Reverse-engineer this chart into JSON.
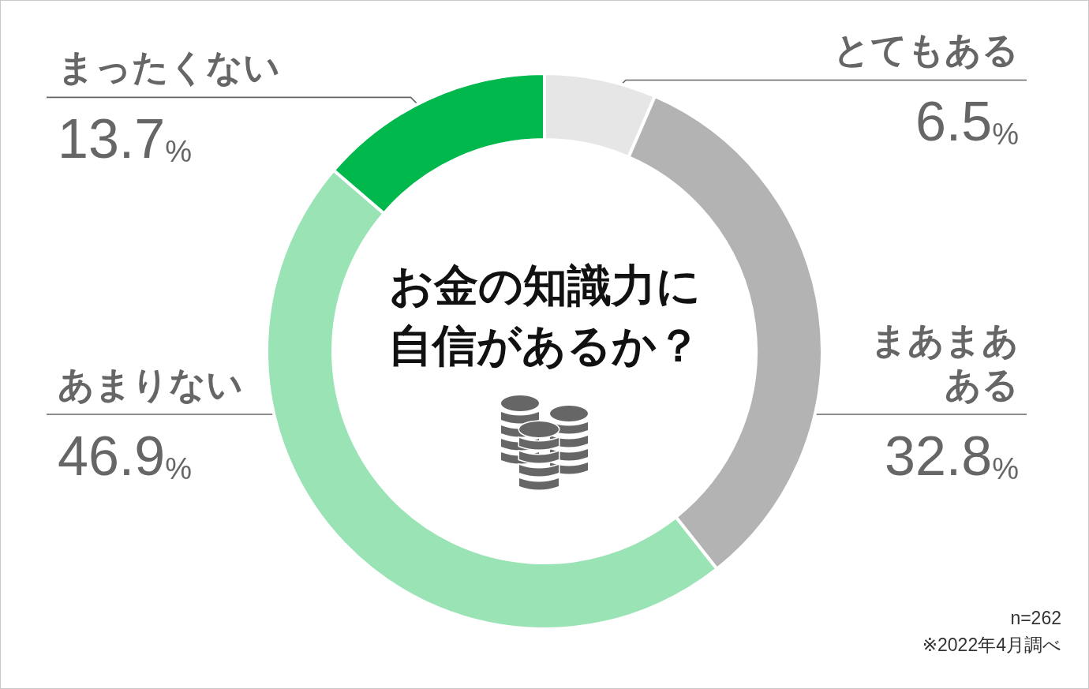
{
  "chart_data": {
    "type": "donut",
    "title": "お金の知識力に自信があるか？",
    "categories": [
      "とてもある",
      "まあまあある",
      "あまりない",
      "まったくない"
    ],
    "values": [
      6.5,
      32.8,
      46.9,
      13.7
    ],
    "colors": [
      "#e6e6e6",
      "#b3b3b3",
      "#99e3b5",
      "#00b84c"
    ],
    "value_labels": [
      "6.5%",
      "32.8%",
      "46.9%",
      "13.7%"
    ],
    "annotations": [
      "n=262",
      "※2022年4月調べ"
    ]
  }
}
